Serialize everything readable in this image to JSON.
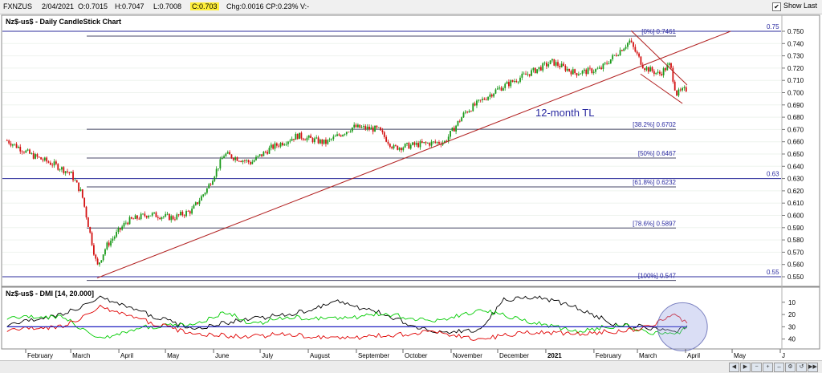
{
  "toolbar": {
    "symbol": "FXNZUS",
    "date": "2/04/2021",
    "open": "O:0.7015",
    "high": "H:0.7047",
    "low": "L:0.7008",
    "close": "C:0.703",
    "chg": "Chg:0.0016",
    "cp": "CP:0.23%",
    "v": "V:-",
    "show_last": "Show Last",
    "show_last_checked": true
  },
  "price_panel": {
    "title": "Nz$-us$ - Daily CandleStick Chart",
    "tl_label": "12-month TL",
    "hline_labels": [
      "0.75",
      "0.63",
      "0.55"
    ],
    "fib_labels": [
      "[0%] 0.7461",
      "[38.2%] 0.6702",
      "[50%] 0.6467",
      "[61.8%] 0.6232",
      "[78.6%] 0.5897",
      "[100%] 0.547"
    ]
  },
  "dmi_panel": {
    "title": "Nz$-us$ - DMI [14, 20.000]",
    "y_ticks": [
      "40",
      "30",
      "20",
      "10"
    ]
  },
  "chart_data": [
    {
      "type": "candlestick",
      "title": "Nz$-us$ - Daily CandleStick Chart",
      "y_ticks": [
        "0.750",
        "0.740",
        "0.730",
        "0.720",
        "0.710",
        "0.700",
        "0.690",
        "0.680",
        "0.670",
        "0.660",
        "0.650",
        "0.640",
        "0.630",
        "0.620",
        "0.610",
        "0.600",
        "0.590",
        "0.580",
        "0.570",
        "0.560",
        "0.550"
      ],
      "ylim": [
        0.545,
        0.755
      ],
      "x_months": [
        "February",
        "March",
        "April",
        "May",
        "June",
        "July",
        "August",
        "September",
        "October",
        "November",
        "December",
        "2021",
        "February",
        "March",
        "April",
        "May",
        "J"
      ],
      "horizontal_lines": [
        0.75,
        0.63,
        0.55
      ],
      "fibonacci": [
        {
          "label": "0%",
          "value": 0.7461
        },
        {
          "label": "38.2%",
          "value": 0.6702
        },
        {
          "label": "50%",
          "value": 0.6467
        },
        {
          "label": "61.8%",
          "value": 0.6232
        },
        {
          "label": "78.6%",
          "value": 0.5897
        },
        {
          "label": "100%",
          "value": 0.547
        }
      ],
      "trendlines": [
        {
          "name": "12-month TL",
          "from": {
            "date": "2020-03-18",
            "value": 0.549
          },
          "to": {
            "date": "2021-04-30",
            "value": 0.75
          }
        },
        {
          "name": "channel-upper",
          "from": {
            "date": "2021-02-25",
            "value": 0.7505
          },
          "to": {
            "date": "2021-04-02",
            "value": 0.7063
          }
        },
        {
          "name": "channel-lower",
          "from": {
            "date": "2021-03-03",
            "value": 0.7152
          },
          "to": {
            "date": "2021-03-30",
            "value": 0.6912
          }
        }
      ],
      "price_path": [
        [
          "2020-01-20",
          0.661
        ],
        [
          "2020-02-05",
          0.649
        ],
        [
          "2020-02-20",
          0.641
        ],
        [
          "2020-03-01",
          0.634
        ],
        [
          "2020-03-08",
          0.618
        ],
        [
          "2020-03-13",
          0.588
        ],
        [
          "2020-03-18",
          0.558
        ],
        [
          "2020-03-24",
          0.575
        ],
        [
          "2020-04-06",
          0.595
        ],
        [
          "2020-04-20",
          0.601
        ],
        [
          "2020-05-06",
          0.598
        ],
        [
          "2020-05-18",
          0.604
        ],
        [
          "2020-05-28",
          0.622
        ],
        [
          "2020-06-08",
          0.65
        ],
        [
          "2020-06-25",
          0.643
        ],
        [
          "2020-07-08",
          0.655
        ],
        [
          "2020-07-25",
          0.665
        ],
        [
          "2020-08-12",
          0.659
        ],
        [
          "2020-08-30",
          0.672
        ],
        [
          "2020-09-15",
          0.67
        ],
        [
          "2020-09-25",
          0.655
        ],
        [
          "2020-10-12",
          0.658
        ],
        [
          "2020-10-28",
          0.66
        ],
        [
          "2020-11-10",
          0.684
        ],
        [
          "2020-11-30",
          0.702
        ],
        [
          "2020-12-15",
          0.712
        ],
        [
          "2021-01-05",
          0.725
        ],
        [
          "2021-01-20",
          0.716
        ],
        [
          "2021-02-05",
          0.719
        ],
        [
          "2021-02-24",
          0.742
        ],
        [
          "2021-03-05",
          0.721
        ],
        [
          "2021-03-15",
          0.715
        ],
        [
          "2021-03-22",
          0.723
        ],
        [
          "2021-03-26",
          0.699
        ],
        [
          "2021-04-02",
          0.703
        ]
      ]
    },
    {
      "type": "line",
      "title": "Nz$-us$ - DMI [14, 20.000]",
      "ylim": [
        0,
        45
      ],
      "y_ticks": [
        10,
        20,
        30,
        40
      ],
      "reference_level": 20,
      "series": [
        {
          "color": "#000000",
          "points": [
            [
              "2020-01-20",
              22
            ],
            [
              "2020-02-25",
              30
            ],
            [
              "2020-03-20",
              44
            ],
            [
              "2020-04-20",
              30
            ],
            [
              "2020-05-20",
              18
            ],
            [
              "2020-06-20",
              26
            ],
            [
              "2020-07-20",
              30
            ],
            [
              "2020-08-20",
              40
            ],
            [
              "2020-09-20",
              30
            ],
            [
              "2020-10-20",
              15
            ],
            [
              "2020-11-20",
              18
            ],
            [
              "2020-12-05",
              42
            ],
            [
              "2020-12-25",
              45
            ],
            [
              "2021-01-20",
              36
            ],
            [
              "2021-02-15",
              22
            ],
            [
              "2021-03-05",
              20
            ],
            [
              "2021-03-25",
              15
            ],
            [
              "2021-04-02",
              21
            ]
          ]
        },
        {
          "color": "#00cc00",
          "points": [
            [
              "2020-01-20",
              28
            ],
            [
              "2020-02-25",
              28
            ],
            [
              "2020-03-20",
              10
            ],
            [
              "2020-04-20",
              20
            ],
            [
              "2020-05-20",
              22
            ],
            [
              "2020-06-10",
              32
            ],
            [
              "2020-06-25",
              22
            ],
            [
              "2020-07-20",
              28
            ],
            [
              "2020-08-20",
              26
            ],
            [
              "2020-09-20",
              31
            ],
            [
              "2020-10-20",
              24
            ],
            [
              "2020-11-20",
              34
            ],
            [
              "2020-12-20",
              25
            ],
            [
              "2021-01-20",
              16
            ],
            [
              "2021-02-20",
              22
            ],
            [
              "2021-03-05",
              16
            ],
            [
              "2021-03-25",
              13
            ],
            [
              "2021-04-02",
              19
            ]
          ]
        },
        {
          "color": "#e00000",
          "points": [
            [
              "2020-01-20",
              18
            ],
            [
              "2020-02-25",
              20
            ],
            [
              "2020-03-20",
              36
            ],
            [
              "2020-04-20",
              24
            ],
            [
              "2020-05-20",
              14
            ],
            [
              "2020-06-20",
              12
            ],
            [
              "2020-07-20",
              14
            ],
            [
              "2020-08-20",
              10
            ],
            [
              "2020-09-20",
              13
            ],
            [
              "2020-10-20",
              16
            ],
            [
              "2020-11-20",
              10
            ],
            [
              "2020-12-20",
              16
            ],
            [
              "2021-01-20",
              14
            ],
            [
              "2021-02-20",
              17
            ],
            [
              "2021-03-05",
              19
            ],
            [
              "2021-03-25",
              29
            ],
            [
              "2021-04-02",
              23
            ]
          ]
        },
        {
          "color": "#2020c0",
          "points": [
            [
              "2020-01-20",
              20
            ],
            [
              "2020-04-20",
              20
            ],
            [
              "2020-07-20",
              20
            ],
            [
              "2020-10-20",
              20
            ],
            [
              "2021-01-20",
              20
            ],
            [
              "2021-04-02",
              20
            ]
          ]
        }
      ],
      "annotation": "ellipse around late March 2021 readings"
    }
  ]
}
